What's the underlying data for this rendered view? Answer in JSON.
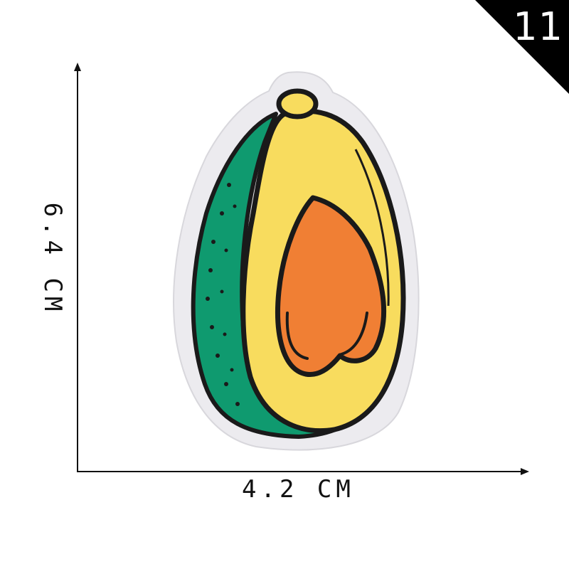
{
  "badge": {
    "number": "11"
  },
  "dimensions": {
    "width_label": "4.2 CM",
    "height_label": "6.4 CM"
  },
  "colors": {
    "felt": "#ecebef",
    "outline": "#1a1a1a",
    "skin": "#0f9a6f",
    "flesh": "#f8dc5e",
    "pit": "#f07f34",
    "badge_bg": "#000000"
  },
  "illustration": {
    "subject": "avocado-half-embroidered-patch-icon"
  }
}
